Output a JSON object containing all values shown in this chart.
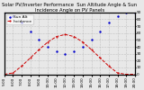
{
  "title": "Solar PV/Inverter Performance  Sun Altitude Angle & Sun Incidence Angle on PV Panels",
  "legend_alt": "Sun Alt",
  "legend_inc": "Incidence",
  "x_labels": [
    "5:00",
    "6:00",
    "7:00",
    "8:00",
    "9:00",
    "10:00",
    "11:00",
    "12:00",
    "13:00",
    "14:00",
    "15:00",
    "16:00",
    "17:00",
    "18:00",
    "19:00",
    "20:00"
  ],
  "x_values": [
    5,
    6,
    7,
    8,
    9,
    10,
    11,
    12,
    13,
    14,
    15,
    16,
    17,
    18,
    19,
    20
  ],
  "sun_alt": [
    90,
    85,
    75,
    62,
    50,
    40,
    33,
    30,
    33,
    40,
    50,
    62,
    75,
    85,
    90,
    90
  ],
  "sun_inc": [
    0,
    2,
    12,
    24,
    36,
    47,
    55,
    58,
    55,
    47,
    36,
    24,
    12,
    2,
    0,
    0
  ],
  "xlim": [
    5,
    20
  ],
  "ylim": [
    0,
    90
  ],
  "y_ticks": [
    0,
    10,
    20,
    30,
    40,
    50,
    60,
    70,
    80,
    90
  ],
  "y_tick_labels": [
    "0",
    "10",
    "20",
    "30",
    "40",
    "50",
    "60",
    "70",
    "80",
    "90"
  ],
  "blue_color": "#0000cc",
  "red_color": "#cc0000",
  "bg_color": "#e8e8e8",
  "grid_color": "#999999",
  "title_fontsize": 3.8,
  "legend_fontsize": 3.2,
  "tick_fontsize": 3.0
}
